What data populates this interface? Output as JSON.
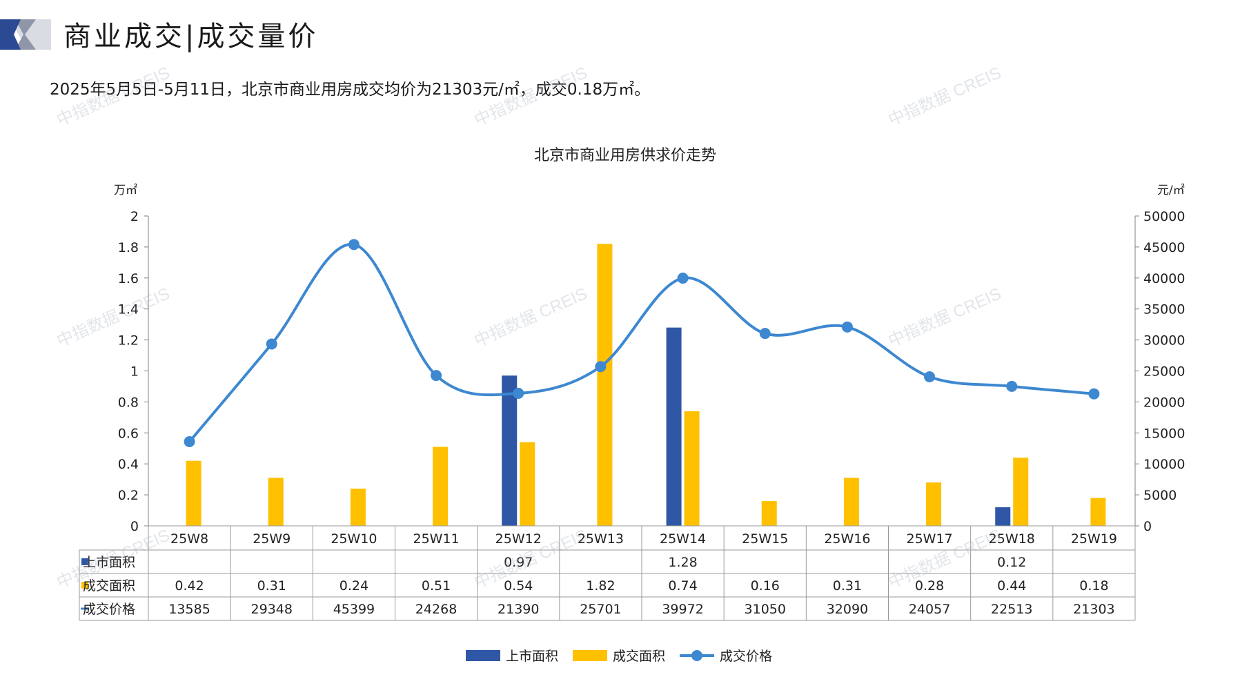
{
  "header": {
    "title": "商业成交|成交量价",
    "summary": "2025年5月5日-5月11日，北京市商业用房成交均价为21303元/㎡，成交0.18万㎡。"
  },
  "watermark": "中指数据 CREIS",
  "colors": {
    "supply": "#2f57a6",
    "transaction_area": "#ffc000",
    "price": "#3d88d0",
    "header_dark": "#2c4a93",
    "header_light": "#d9dce3"
  },
  "chart_data": {
    "type": "bar",
    "title": "北京市商业用房供求价走势",
    "y_left_unit": "万㎡",
    "y_right_unit": "元/㎡",
    "ylim_left": [
      0,
      2
    ],
    "ylim_right": [
      0,
      50000
    ],
    "y_left_ticks": [
      "0",
      "0.2",
      "0.4",
      "0.6",
      "0.8",
      "1",
      "1.2",
      "1.4",
      "1.6",
      "1.8",
      "2"
    ],
    "y_right_ticks": [
      "0",
      "5000",
      "10000",
      "15000",
      "20000",
      "25000",
      "30000",
      "35000",
      "40000",
      "45000",
      "50000"
    ],
    "categories": [
      "25W8",
      "25W9",
      "25W10",
      "25W11",
      "25W12",
      "25W13",
      "25W14",
      "25W15",
      "25W16",
      "25W17",
      "25W18",
      "25W19"
    ],
    "series": [
      {
        "name": "上市面积",
        "type": "bar",
        "axis": "left",
        "values": [
          null,
          null,
          null,
          null,
          0.97,
          null,
          1.28,
          null,
          null,
          null,
          0.12,
          null
        ],
        "labels": [
          "",
          "",
          "",
          "",
          "0.97",
          "",
          "1.28",
          "",
          "",
          "",
          "0.12",
          ""
        ]
      },
      {
        "name": "成交面积",
        "type": "bar",
        "axis": "left",
        "values": [
          0.42,
          0.31,
          0.24,
          0.51,
          0.54,
          1.82,
          0.74,
          0.16,
          0.31,
          0.28,
          0.44,
          0.18
        ],
        "labels": [
          "0.42",
          "0.31",
          "0.24",
          "0.51",
          "0.54",
          "1.82",
          "0.74",
          "0.16",
          "0.31",
          "0.28",
          "0.44",
          "0.18"
        ]
      },
      {
        "name": "成交价格",
        "type": "line",
        "axis": "right",
        "smooth": true,
        "values": [
          13585,
          29348,
          45399,
          24268,
          21390,
          25701,
          39972,
          31050,
          32090,
          24057,
          22513,
          21303
        ],
        "labels": [
          "13585",
          "29348",
          "45399",
          "24268",
          "21390",
          "25701",
          "39972",
          "31050",
          "32090",
          "24057",
          "22513",
          "21303"
        ]
      }
    ],
    "data_table": true,
    "legend_position": "bottom",
    "grid": false
  }
}
